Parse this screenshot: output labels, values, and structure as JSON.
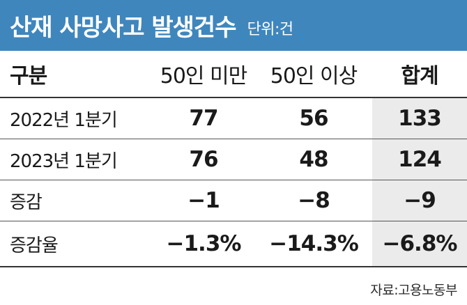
{
  "title": "산재 사망사고 발생건수",
  "unit": "단위:건",
  "headers": [
    "구분",
    "50인 미만",
    "50인 이상",
    "합계"
  ],
  "rows": [
    {
      "label": "2022년 1분기",
      "under50": "77",
      "over50": "56",
      "total": "133"
    },
    {
      "label": "2023년 1분기",
      "under50": "76",
      "over50": "48",
      "total": "124"
    },
    {
      "label": "증감",
      "under50": "−1",
      "over50": "−8",
      "total": "−9"
    },
    {
      "label": "증감율",
      "under50": "−1.3%",
      "over50": "−14.3%",
      "total": "−6.8%"
    }
  ],
  "source": "자료:고용노동부",
  "colors": {
    "title_bg": "#3f86bd",
    "total_bg": "#ebebeb"
  }
}
